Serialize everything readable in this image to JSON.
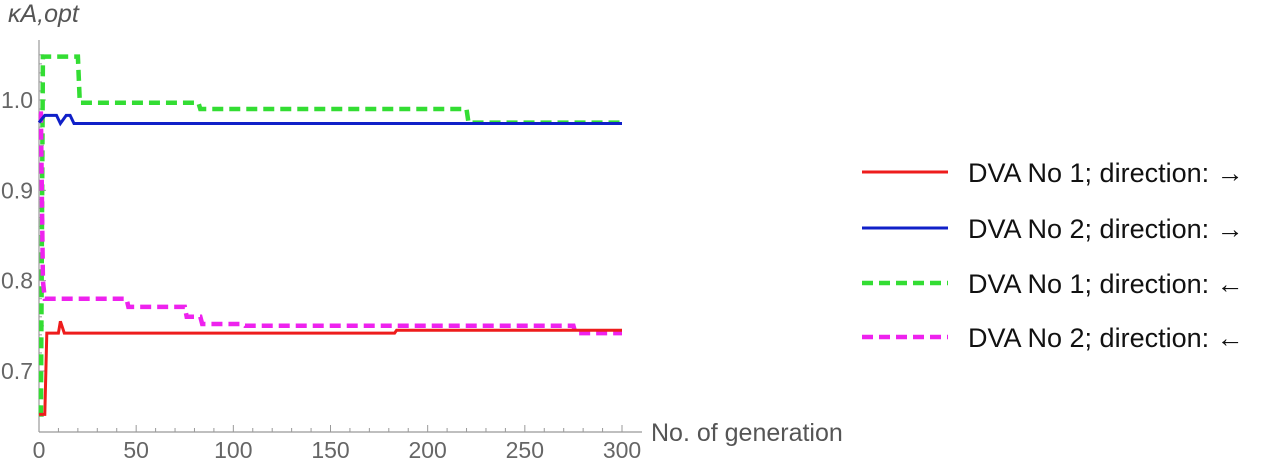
{
  "chart_data": {
    "type": "line",
    "ylabel": "κA,opt",
    "xlabel": "No. of generation",
    "xlim": [
      0,
      300
    ],
    "ylim": [
      0.64,
      1.06
    ],
    "xticks": [
      0,
      50,
      100,
      150,
      200,
      250,
      300
    ],
    "yticks": [
      0.7,
      0.8,
      0.9,
      1.0
    ],
    "ytick_labels": [
      "0.7",
      "0.8",
      "0.9",
      "1.0"
    ],
    "grid": false,
    "legend_position": "right",
    "series": [
      {
        "name": "DVA No 1; direction: →",
        "color": "#ee1c1c",
        "dashed": false,
        "x": [
          0,
          3,
          4,
          6,
          10,
          11,
          13,
          183,
          184,
          300
        ],
        "y": [
          0.652,
          0.652,
          0.742,
          0.742,
          0.742,
          0.755,
          0.742,
          0.742,
          0.745,
          0.745
        ]
      },
      {
        "name": "DVA No 2; direction: →",
        "color": "#1020c8",
        "dashed": false,
        "x": [
          0,
          3,
          4,
          9,
          11,
          14,
          16,
          18,
          300
        ],
        "y": [
          0.975,
          0.983,
          0.983,
          0.983,
          0.974,
          0.983,
          0.983,
          0.974,
          0.974
        ]
      },
      {
        "name": "DVA No 1; direction: ←",
        "color": "#33dd33",
        "dashed": true,
        "x": [
          0,
          1,
          2,
          3,
          20,
          21,
          82,
          83,
          220,
          221,
          300
        ],
        "y": [
          0.652,
          0.652,
          1.048,
          1.048,
          1.048,
          0.997,
          0.997,
          0.99,
          0.99,
          0.975,
          0.975
        ]
      },
      {
        "name": "DVA No 2; direction: ←",
        "color": "#ee22ee",
        "dashed": true,
        "x": [
          0,
          1,
          2,
          3,
          45,
          46,
          75,
          76,
          83,
          84,
          105,
          106,
          275,
          276,
          300
        ],
        "y": [
          0.985,
          0.985,
          0.8,
          0.78,
          0.78,
          0.771,
          0.771,
          0.76,
          0.76,
          0.752,
          0.752,
          0.75,
          0.75,
          0.742,
          0.742
        ]
      }
    ]
  }
}
